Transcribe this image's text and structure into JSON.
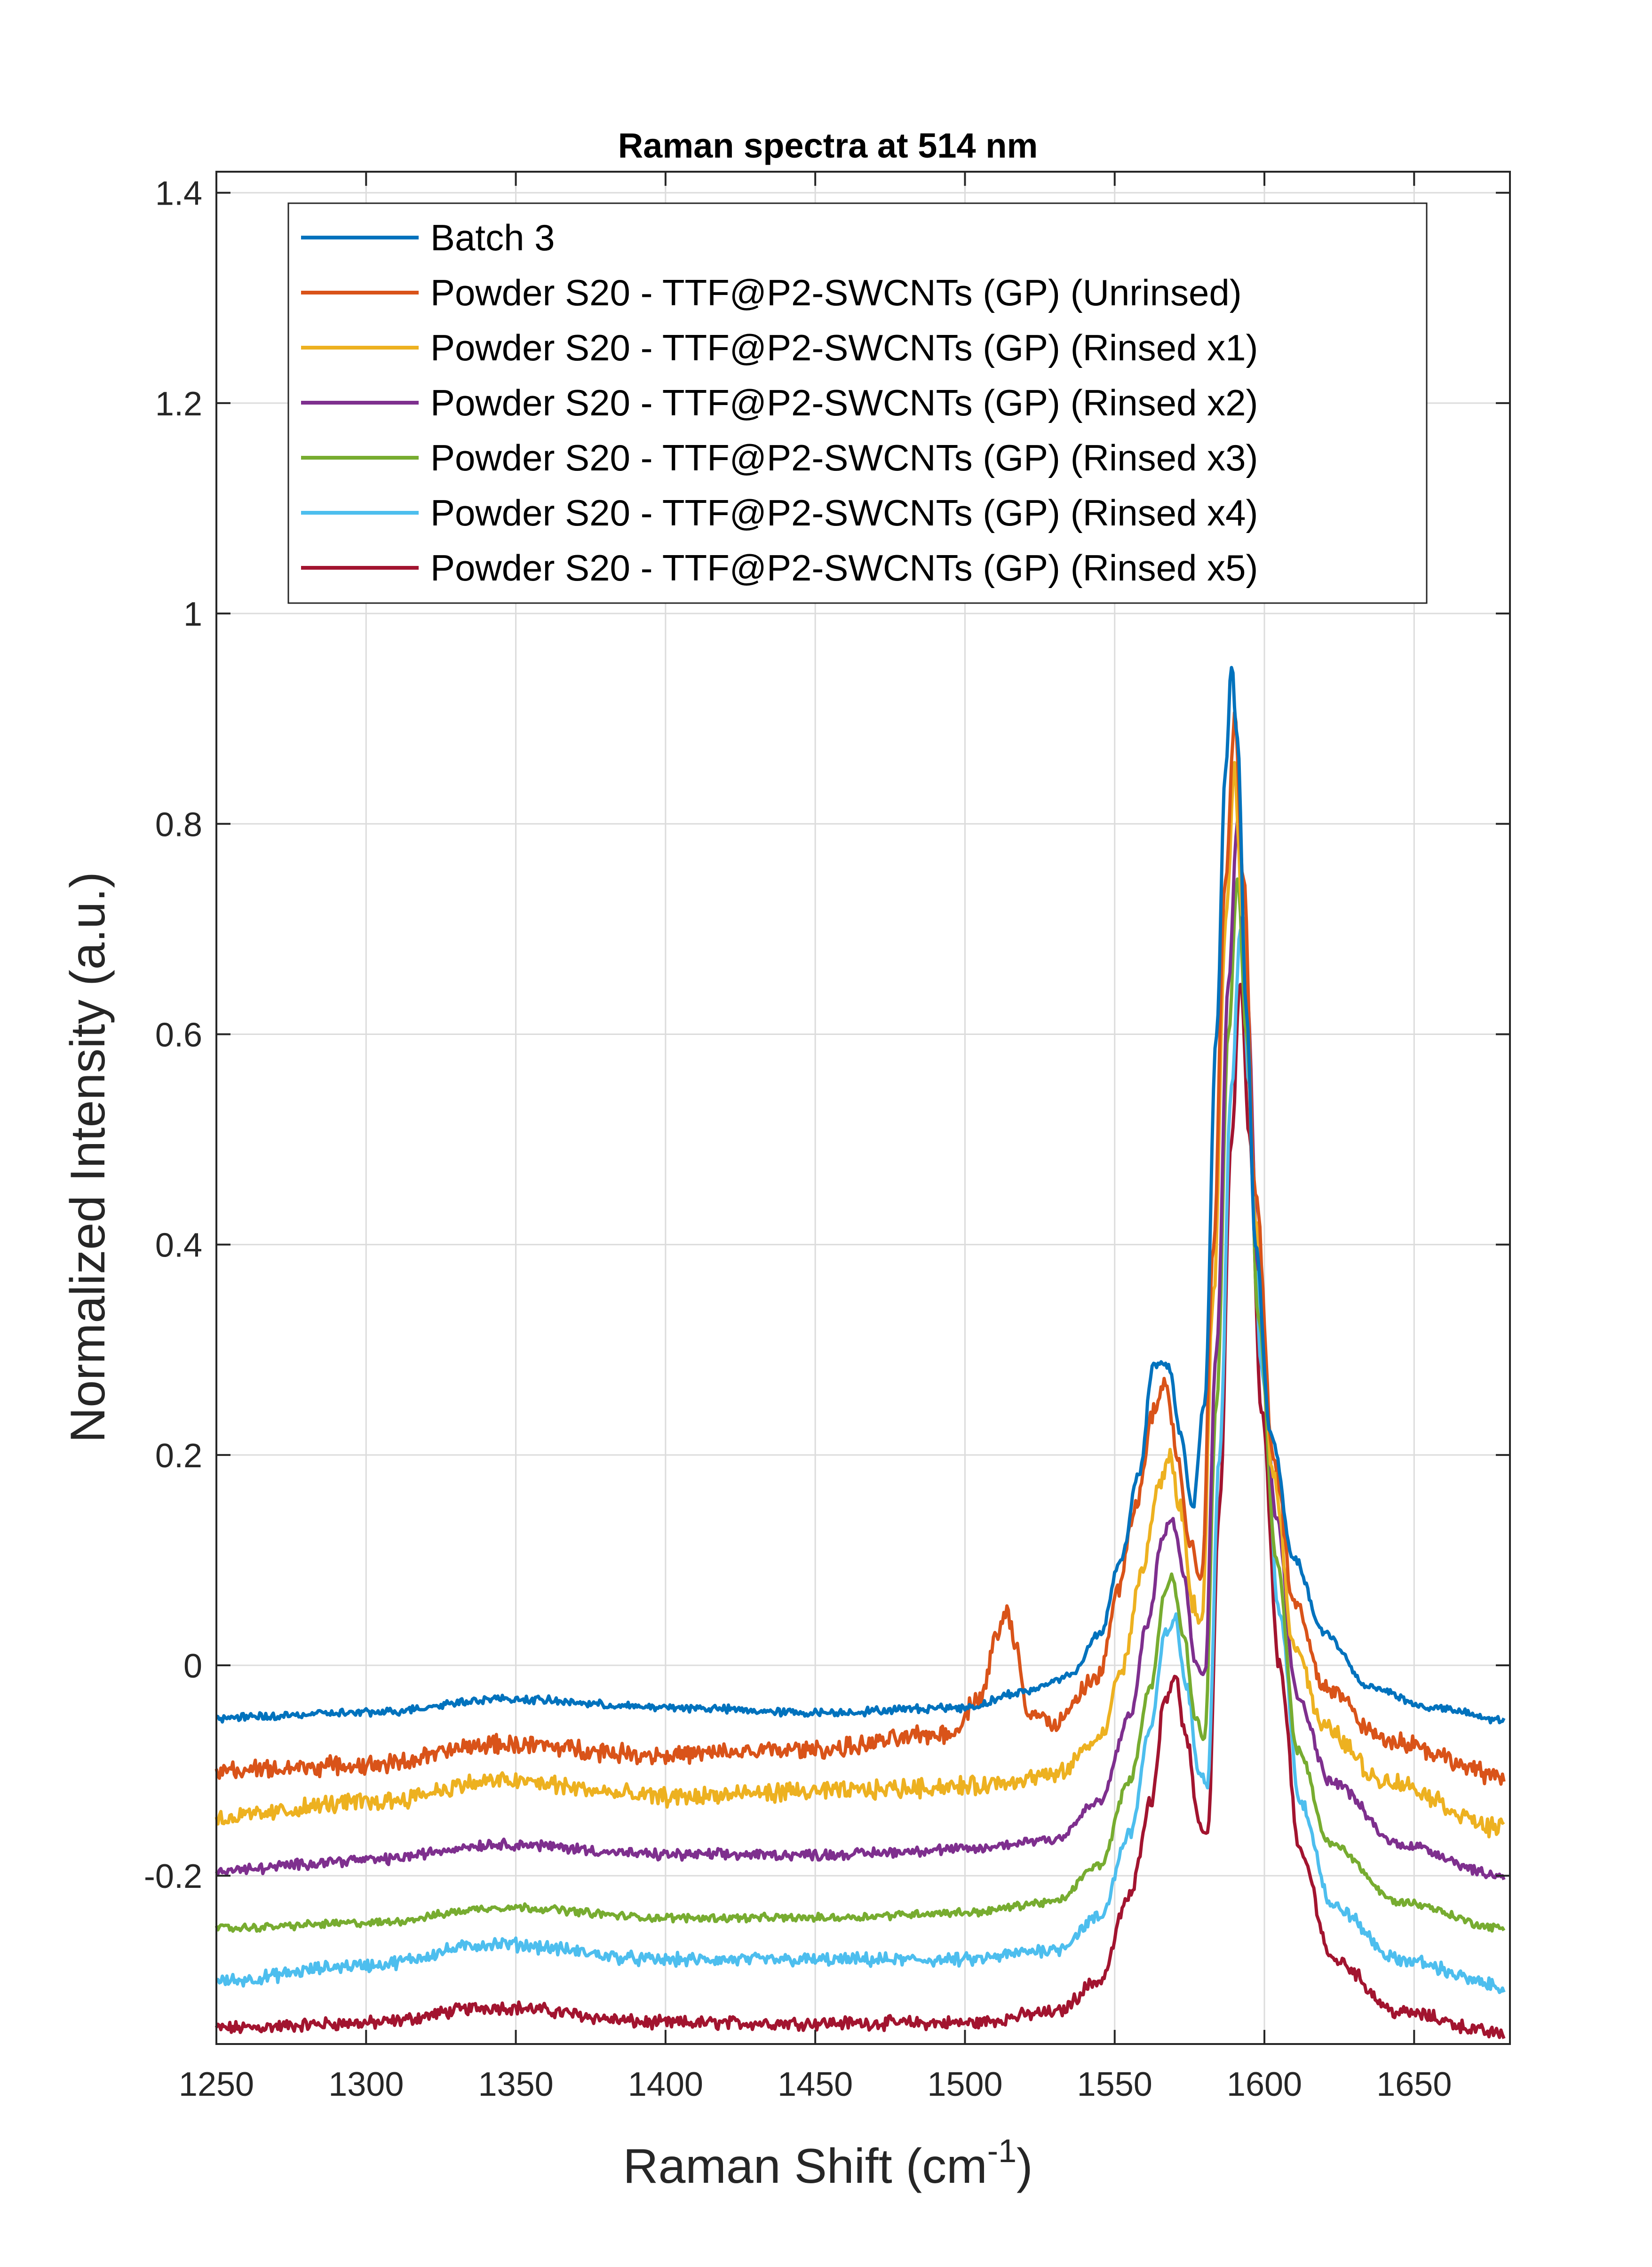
{
  "chart_data": {
    "type": "line",
    "title": "Raman spectra at 514 nm",
    "xlabel_main": "Raman Shift (cm",
    "xlabel_sup": "-1",
    "xlabel_close": ")",
    "ylabel": "Normalized Intensity (a.u.)",
    "xlim": [
      1250,
      1682
    ],
    "ylim": [
      -0.36,
      1.42
    ],
    "xticks": [
      1250,
      1300,
      1350,
      1400,
      1450,
      1500,
      1550,
      1600,
      1650
    ],
    "xtick_labels": [
      "1250",
      "1300",
      "1350",
      "1400",
      "1450",
      "1500",
      "1550",
      "1600",
      "1650"
    ],
    "yticks": [
      -0.2,
      0,
      0.2,
      0.4,
      0.6,
      0.8,
      1,
      1.2,
      1.4
    ],
    "ytick_labels": [
      "-0.2",
      "0",
      "0.2",
      "0.4",
      "0.6",
      "0.8",
      "1",
      "1.2",
      "1.4"
    ],
    "grid": true,
    "legend_position": "top",
    "series": [
      {
        "name": "Batch 3",
        "color": "#0072BD",
        "noise": 0.003,
        "points": [
          [
            1250,
            -0.05
          ],
          [
            1300,
            -0.045
          ],
          [
            1345,
            -0.032
          ],
          [
            1400,
            -0.04
          ],
          [
            1450,
            -0.045
          ],
          [
            1500,
            -0.04
          ],
          [
            1520,
            -0.025
          ],
          [
            1535,
            -0.01
          ],
          [
            1545,
            0.03
          ],
          [
            1552,
            0.1
          ],
          [
            1558,
            0.18
          ],
          [
            1563,
            0.285
          ],
          [
            1568,
            0.285
          ],
          [
            1572,
            0.22
          ],
          [
            1576,
            0.15
          ],
          [
            1580,
            0.25
          ],
          [
            1584,
            0.6
          ],
          [
            1587,
            0.85
          ],
          [
            1589,
            0.95
          ],
          [
            1591,
            0.88
          ],
          [
            1594,
            0.62
          ],
          [
            1597,
            0.4
          ],
          [
            1602,
            0.22
          ],
          [
            1610,
            0.1
          ],
          [
            1620,
            0.03
          ],
          [
            1635,
            -0.02
          ],
          [
            1655,
            -0.04
          ],
          [
            1680,
            -0.052
          ]
        ]
      },
      {
        "name": "Powder S20 - TTF@P2-SWCNTs (GP) (Unrinsed)",
        "color": "#D95319",
        "noise": 0.007,
        "points": [
          [
            1250,
            -0.1
          ],
          [
            1300,
            -0.095
          ],
          [
            1345,
            -0.075
          ],
          [
            1400,
            -0.085
          ],
          [
            1450,
            -0.08
          ],
          [
            1495,
            -0.065
          ],
          [
            1505,
            -0.03
          ],
          [
            1511,
            0.03
          ],
          [
            1514,
            0.05
          ],
          [
            1517,
            0.02
          ],
          [
            1521,
            -0.045
          ],
          [
            1530,
            -0.055
          ],
          [
            1545,
            -0.01
          ],
          [
            1551,
            0.07
          ],
          [
            1557,
            0.15
          ],
          [
            1563,
            0.24
          ],
          [
            1567,
            0.27
          ],
          [
            1571,
            0.2
          ],
          [
            1575,
            0.12
          ],
          [
            1579,
            0.08
          ],
          [
            1583,
            0.4
          ],
          [
            1587,
            0.75
          ],
          [
            1590,
            0.9
          ],
          [
            1593,
            0.75
          ],
          [
            1597,
            0.45
          ],
          [
            1603,
            0.2
          ],
          [
            1610,
            0.06
          ],
          [
            1620,
            -0.02
          ],
          [
            1640,
            -0.07
          ],
          [
            1680,
            -0.105
          ]
        ]
      },
      {
        "name": "Powder S20 - TTF@P2-SWCNTs (GP) (Rinsed x1)",
        "color": "#EDB120",
        "noise": 0.007,
        "points": [
          [
            1250,
            -0.145
          ],
          [
            1300,
            -0.13
          ],
          [
            1345,
            -0.11
          ],
          [
            1400,
            -0.125
          ],
          [
            1450,
            -0.12
          ],
          [
            1500,
            -0.115
          ],
          [
            1530,
            -0.105
          ],
          [
            1545,
            -0.07
          ],
          [
            1553,
            0.0
          ],
          [
            1559,
            0.09
          ],
          [
            1565,
            0.17
          ],
          [
            1568,
            0.2
          ],
          [
            1572,
            0.15
          ],
          [
            1576,
            0.06
          ],
          [
            1579,
            0.04
          ],
          [
            1583,
            0.35
          ],
          [
            1587,
            0.7
          ],
          [
            1590,
            0.85
          ],
          [
            1593,
            0.7
          ],
          [
            1597,
            0.42
          ],
          [
            1603,
            0.18
          ],
          [
            1610,
            0.02
          ],
          [
            1620,
            -0.06
          ],
          [
            1640,
            -0.11
          ],
          [
            1680,
            -0.155
          ]
        ]
      },
      {
        "name": "Powder S20 - TTF@P2-SWCNTs (GP) (Rinsed x2)",
        "color": "#7E2F8E",
        "noise": 0.004,
        "points": [
          [
            1250,
            -0.195
          ],
          [
            1300,
            -0.185
          ],
          [
            1345,
            -0.17
          ],
          [
            1400,
            -0.18
          ],
          [
            1450,
            -0.18
          ],
          [
            1500,
            -0.175
          ],
          [
            1530,
            -0.165
          ],
          [
            1545,
            -0.13
          ],
          [
            1555,
            -0.05
          ],
          [
            1561,
            0.04
          ],
          [
            1566,
            0.12
          ],
          [
            1569,
            0.14
          ],
          [
            1573,
            0.09
          ],
          [
            1577,
            0.0
          ],
          [
            1580,
            -0.01
          ],
          [
            1584,
            0.3
          ],
          [
            1588,
            0.65
          ],
          [
            1591,
            0.8
          ],
          [
            1594,
            0.65
          ],
          [
            1598,
            0.38
          ],
          [
            1604,
            0.14
          ],
          [
            1611,
            -0.03
          ],
          [
            1622,
            -0.11
          ],
          [
            1645,
            -0.17
          ],
          [
            1680,
            -0.2
          ]
        ]
      },
      {
        "name": "Powder S20 - TTF@P2-SWCNTs (GP) (Rinsed x3)",
        "color": "#77AC30",
        "noise": 0.003,
        "points": [
          [
            1250,
            -0.25
          ],
          [
            1300,
            -0.245
          ],
          [
            1347,
            -0.23
          ],
          [
            1400,
            -0.24
          ],
          [
            1450,
            -0.24
          ],
          [
            1500,
            -0.235
          ],
          [
            1530,
            -0.225
          ],
          [
            1545,
            -0.19
          ],
          [
            1555,
            -0.11
          ],
          [
            1562,
            -0.02
          ],
          [
            1567,
            0.07
          ],
          [
            1569,
            0.085
          ],
          [
            1573,
            0.03
          ],
          [
            1577,
            -0.05
          ],
          [
            1580,
            -0.07
          ],
          [
            1584,
            0.25
          ],
          [
            1588,
            0.6
          ],
          [
            1591,
            0.75
          ],
          [
            1594,
            0.6
          ],
          [
            1598,
            0.33
          ],
          [
            1604,
            0.1
          ],
          [
            1611,
            -0.08
          ],
          [
            1622,
            -0.17
          ],
          [
            1645,
            -0.225
          ],
          [
            1680,
            -0.25
          ]
        ]
      },
      {
        "name": "Powder S20 - TTF@P2-SWCNTs (GP) (Rinsed x4)",
        "color": "#4DBEEE",
        "noise": 0.005,
        "points": [
          [
            1250,
            -0.3
          ],
          [
            1300,
            -0.285
          ],
          [
            1343,
            -0.265
          ],
          [
            1400,
            -0.28
          ],
          [
            1450,
            -0.28
          ],
          [
            1500,
            -0.28
          ],
          [
            1530,
            -0.27
          ],
          [
            1545,
            -0.24
          ],
          [
            1555,
            -0.16
          ],
          [
            1562,
            -0.06
          ],
          [
            1567,
            0.03
          ],
          [
            1570,
            0.045
          ],
          [
            1574,
            -0.02
          ],
          [
            1578,
            -0.1
          ],
          [
            1581,
            -0.11
          ],
          [
            1585,
            0.2
          ],
          [
            1589,
            0.55
          ],
          [
            1592,
            0.7
          ],
          [
            1595,
            0.55
          ],
          [
            1599,
            0.28
          ],
          [
            1605,
            0.05
          ],
          [
            1612,
            -0.13
          ],
          [
            1623,
            -0.23
          ],
          [
            1645,
            -0.28
          ],
          [
            1680,
            -0.305
          ]
        ]
      },
      {
        "name": "Powder S20 - TTF@P2-SWCNTs (GP) (Rinsed x5)",
        "color": "#A2142F",
        "noise": 0.005,
        "points": [
          [
            1250,
            -0.345
          ],
          [
            1300,
            -0.34
          ],
          [
            1343,
            -0.325
          ],
          [
            1400,
            -0.34
          ],
          [
            1450,
            -0.34
          ],
          [
            1500,
            -0.34
          ],
          [
            1530,
            -0.33
          ],
          [
            1545,
            -0.3
          ],
          [
            1555,
            -0.22
          ],
          [
            1562,
            -0.13
          ],
          [
            1567,
            -0.03
          ],
          [
            1570,
            -0.01
          ],
          [
            1574,
            -0.07
          ],
          [
            1578,
            -0.15
          ],
          [
            1581,
            -0.16
          ],
          [
            1585,
            0.15
          ],
          [
            1589,
            0.5
          ],
          [
            1592,
            0.65
          ],
          [
            1595,
            0.5
          ],
          [
            1599,
            0.24
          ],
          [
            1605,
            0.0
          ],
          [
            1612,
            -0.18
          ],
          [
            1623,
            -0.28
          ],
          [
            1645,
            -0.33
          ],
          [
            1680,
            -0.35
          ]
        ]
      }
    ]
  }
}
